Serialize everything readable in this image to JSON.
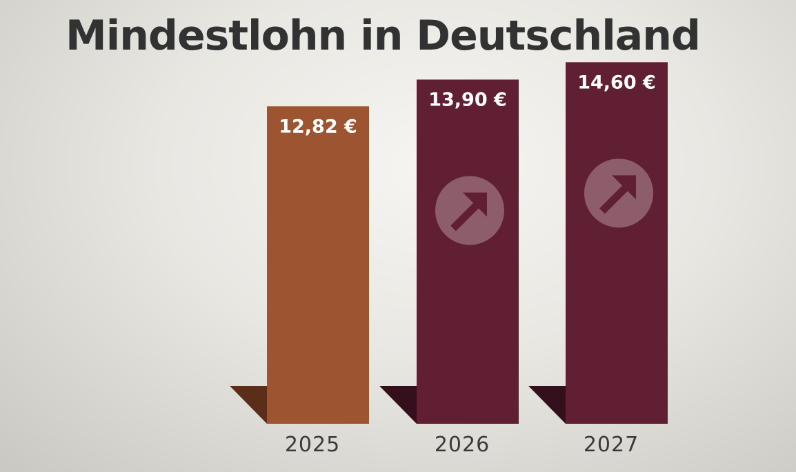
{
  "title": "Mindestlohn in Deutschland",
  "chart_data": {
    "type": "bar",
    "title": "Mindestlohn in Deutschland",
    "categories": [
      "2025",
      "2026",
      "2027"
    ],
    "values": [
      12.82,
      13.9,
      14.6
    ],
    "value_labels": [
      "12,82 €",
      "13,90 €",
      "14,60 €"
    ],
    "unit": "€",
    "ylim": [
      0,
      16
    ],
    "colors": [
      "#9c5530",
      "#611f33",
      "#611f33"
    ],
    "shadow_colors": [
      "#5a2e18",
      "#33101b",
      "#33101b"
    ],
    "icons": [
      "",
      "trend-up-arrow-icon",
      "trend-up-arrow-icon"
    ],
    "grid": false,
    "legend": "none"
  }
}
